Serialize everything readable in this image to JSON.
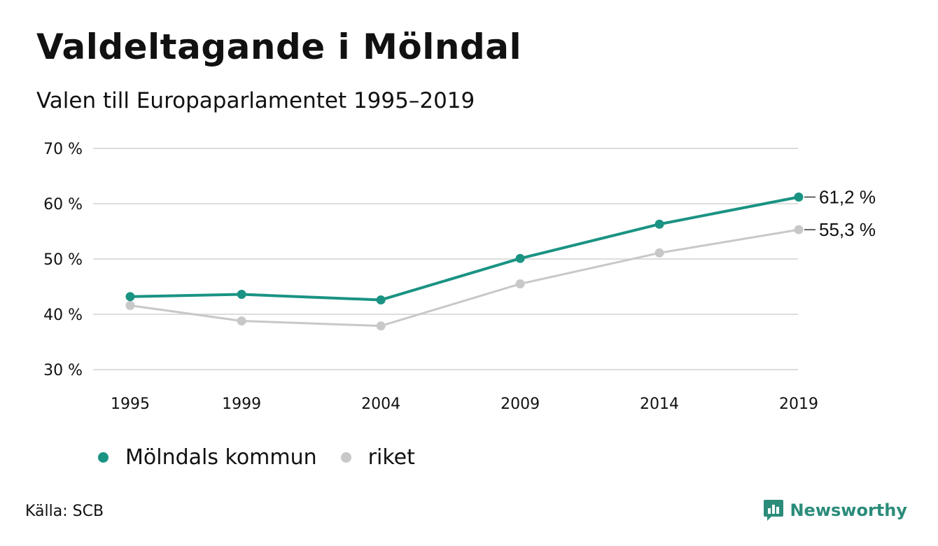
{
  "header": {
    "title": "Valdeltagande i Mölndal",
    "subtitle": "Valen till Europaparlamentet 1995–2019"
  },
  "colors": {
    "molndal": "#1a9383",
    "riket": "#c8c8c8",
    "grid": "#dddddd",
    "text": "#111111",
    "brand": "#2b8c7a"
  },
  "chart_data": {
    "type": "line",
    "x": [
      1995,
      1999,
      2004,
      2009,
      2014,
      2019
    ],
    "x_tick_labels": [
      "1995",
      "1999",
      "2004",
      "2009",
      "2014",
      "2019"
    ],
    "ylim": [
      30,
      70
    ],
    "y_ticks": [
      30,
      40,
      50,
      60,
      70
    ],
    "y_tick_labels": [
      "30 %",
      "40 %",
      "50 %",
      "60 %",
      "70 %"
    ],
    "grid": true,
    "legend_position": "bottom-left",
    "series": [
      {
        "name": "Mölndals kommun",
        "color": "#1a9383",
        "values": [
          43.2,
          43.6,
          42.6,
          50.1,
          56.3,
          61.2
        ],
        "end_label": "61,2 %"
      },
      {
        "name": "riket",
        "color": "#c8c8c8",
        "values": [
          41.6,
          38.8,
          37.9,
          45.5,
          51.1,
          55.3
        ],
        "end_label": "55,3 %"
      }
    ]
  },
  "footer": {
    "source": "Källa: SCB",
    "brand": "Newsworthy",
    "brand_icon": "bar-chart-speech-icon"
  }
}
